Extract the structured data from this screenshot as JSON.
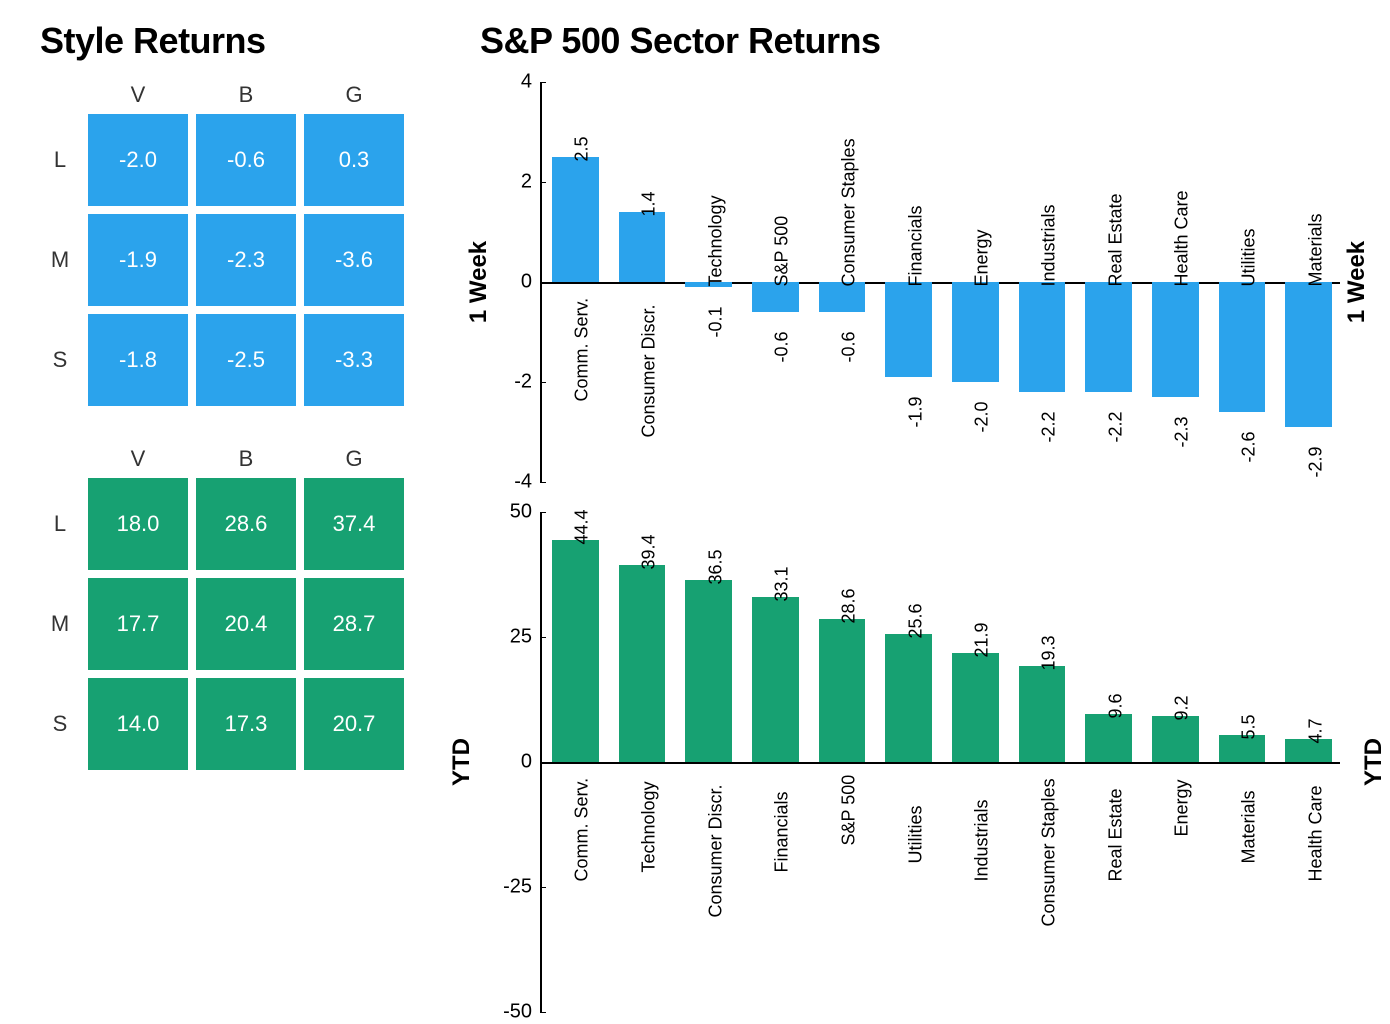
{
  "titles": {
    "style": "Style Returns",
    "sector": "S&P 500 Sector Returns"
  },
  "colors": {
    "week": "#2ba3ec",
    "ytd": "#17a172",
    "text": "#000000",
    "bg": "#ffffff"
  },
  "style_matrix": {
    "col_headers": [
      "V",
      "B",
      "G"
    ],
    "row_headers": [
      "L",
      "M",
      "S"
    ],
    "week": {
      "color": "#2ba3ec",
      "rows": [
        [
          "-2.0",
          "-0.6",
          "0.3"
        ],
        [
          "-1.9",
          "-2.3",
          "-3.6"
        ],
        [
          "-1.8",
          "-2.5",
          "-3.3"
        ]
      ]
    },
    "ytd": {
      "color": "#17a172",
      "rows": [
        [
          "18.0",
          "28.6",
          "37.4"
        ],
        [
          "17.7",
          "20.4",
          "28.7"
        ],
        [
          "14.0",
          "17.3",
          "20.7"
        ]
      ]
    }
  },
  "sector_week": {
    "type": "bar",
    "ylabel": "1 Week",
    "ylim": [
      -4,
      4
    ],
    "yticks": [
      -4,
      -2,
      0,
      2,
      4
    ],
    "bar_color": "#2ba3ec",
    "categories": [
      "Comm. Serv.",
      "Consumer Discr.",
      "Technology",
      "S&P 500",
      "Consumer Staples",
      "Financials",
      "Energy",
      "Industrials",
      "Real Estate",
      "Health Care",
      "Utilities",
      "Materials"
    ],
    "values": [
      2.5,
      1.4,
      -0.1,
      -0.6,
      -0.6,
      -1.9,
      -2.0,
      -2.2,
      -2.2,
      -2.3,
      -2.6,
      -2.9
    ]
  },
  "sector_ytd": {
    "type": "bar",
    "ylabel": "YTD",
    "ylim": [
      -50,
      50
    ],
    "yticks": [
      -50,
      -25,
      0,
      25,
      50
    ],
    "bar_color": "#17a172",
    "categories": [
      "Comm. Serv.",
      "Technology",
      "Consumer Discr.",
      "Financials",
      "S&P 500",
      "Utilities",
      "Industrials",
      "Consumer Staples",
      "Real Estate",
      "Energy",
      "Materials",
      "Health Care"
    ],
    "values": [
      44.4,
      39.4,
      36.5,
      33.1,
      28.6,
      25.6,
      21.9,
      19.3,
      9.6,
      9.2,
      5.5,
      4.7
    ]
  },
  "fonts": {
    "title_size": 36,
    "axis_label_size": 24,
    "tick_size": 20,
    "cell_size": 22,
    "bar_label_size": 18
  }
}
